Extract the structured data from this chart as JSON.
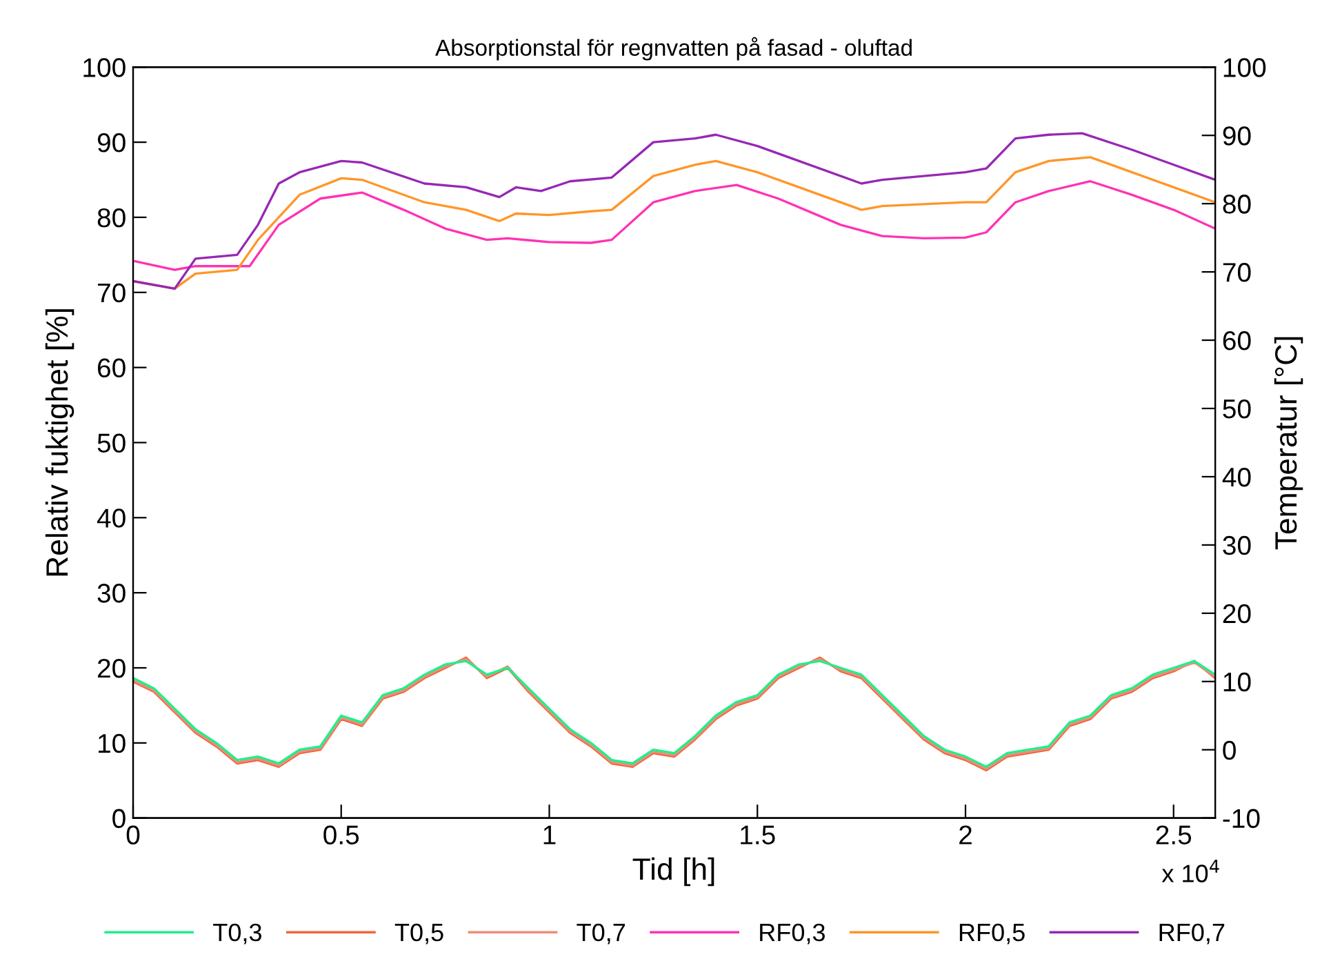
{
  "chart_data": {
    "type": "line",
    "title": "Absorptionstal för regnvatten på fasad - oluftad",
    "xlabel": "Tid [h]",
    "ylabel": "Relativ fuktighet [%]",
    "y2label": "Temperatur [°C]",
    "xlim": [
      0,
      2.6
    ],
    "xticks": [
      0,
      0.5,
      1,
      1.5,
      2,
      2.5
    ],
    "ylim": [
      0,
      100
    ],
    "yticks": [
      0,
      10,
      20,
      30,
      40,
      50,
      60,
      70,
      80,
      90,
      100
    ],
    "y2lim": [
      -10,
      100
    ],
    "y2ticks": [
      -10,
      0,
      10,
      20,
      30,
      40,
      50,
      60,
      70,
      80,
      90,
      100
    ],
    "annotations": [
      "x 10$^{4}$"
    ],
    "legend": "bottom",
    "grid": false,
    "marker": "none",
    "line_style": "solid",
    "series": [
      {
        "name": "T0,5",
        "color": "#f0643c",
        "axis": "y2",
        "x": [
          0,
          0.05,
          0.1,
          0.15,
          0.2,
          0.25,
          0.3,
          0.35,
          0.4,
          0.45,
          0.5,
          0.55,
          0.6,
          0.65,
          0.7,
          0.75,
          0.8,
          0.85,
          0.9,
          0.95,
          1,
          1.05,
          1.1,
          1.15,
          1.2,
          1.25,
          1.3,
          1.35,
          1.4,
          1.45,
          1.5,
          1.55,
          1.6,
          1.65,
          1.7,
          1.75,
          1.8,
          1.85,
          1.9,
          1.95,
          2,
          2.05,
          2.1,
          2.15,
          2.2,
          2.25,
          2.3,
          2.35,
          2.4,
          2.45,
          2.5,
          2.55,
          2.6
        ],
        "values": [
          10,
          8.5,
          5.5,
          2.5,
          0.5,
          -2,
          -1.5,
          -2.5,
          -0.5,
          0,
          4.5,
          3.5,
          7.5,
          8.5,
          10.5,
          12,
          13.5,
          10.5,
          12,
          8.5,
          5.5,
          2.5,
          0.5,
          -2,
          -2.5,
          -0.5,
          -1,
          1.5,
          4.5,
          6.5,
          7.5,
          10.5,
          12,
          13.5,
          11.5,
          10.5,
          7.5,
          4.5,
          1.5,
          -0.5,
          -1.5,
          -3,
          -1,
          -0.5,
          0,
          3.5,
          4.5,
          7.5,
          8.5,
          10.5,
          11.5,
          13,
          10.5
        ]
      },
      {
        "name": "T0,7",
        "color": "#f08c78",
        "axis": "y2",
        "x": [
          0,
          0.05,
          0.1,
          0.15,
          0.2,
          0.25,
          0.3,
          0.35,
          0.4,
          0.45,
          0.5,
          0.55,
          0.6,
          0.65,
          0.7,
          0.75,
          0.8,
          0.85,
          0.9,
          0.95,
          1,
          1.05,
          1.1,
          1.15,
          1.2,
          1.25,
          1.3,
          1.35,
          1.4,
          1.45,
          1.5,
          1.55,
          1.6,
          1.65,
          1.7,
          1.75,
          1.8,
          1.85,
          1.9,
          1.95,
          2,
          2.05,
          2.1,
          2.15,
          2.2,
          2.25,
          2.3,
          2.35,
          2.4,
          2.45,
          2.5,
          2.55,
          2.6
        ],
        "values": [
          10.2,
          8.7,
          5.7,
          2.7,
          0.7,
          -1.8,
          -1.3,
          -2.3,
          -0.3,
          0.2,
          4.7,
          3.7,
          7.7,
          8.7,
          10.7,
          12.2,
          13.3,
          10.7,
          12.2,
          8.7,
          5.7,
          2.7,
          0.7,
          -1.8,
          -2.3,
          -0.3,
          -0.8,
          1.7,
          4.7,
          6.7,
          7.7,
          10.7,
          12.2,
          13.3,
          11.7,
          10.7,
          7.7,
          4.7,
          1.7,
          -0.3,
          -1.3,
          -2.8,
          -0.8,
          -0.3,
          0.2,
          3.7,
          4.7,
          7.7,
          8.7,
          10.7,
          11.7,
          12.8,
          10.7
        ]
      },
      {
        "name": "T0,3",
        "color": "#1ef08c",
        "axis": "y2",
        "x": [
          0,
          0.05,
          0.1,
          0.15,
          0.2,
          0.25,
          0.3,
          0.35,
          0.4,
          0.45,
          0.5,
          0.55,
          0.6,
          0.65,
          0.7,
          0.75,
          0.8,
          0.85,
          0.9,
          0.95,
          1,
          1.05,
          1.1,
          1.15,
          1.2,
          1.25,
          1.3,
          1.35,
          1.4,
          1.45,
          1.5,
          1.55,
          1.6,
          1.65,
          1.7,
          1.75,
          1.8,
          1.85,
          1.9,
          1.95,
          2,
          2.05,
          2.1,
          2.15,
          2.2,
          2.25,
          2.3,
          2.35,
          2.4,
          2.45,
          2.5,
          2.55,
          2.6
        ],
        "values": [
          10.5,
          9,
          6,
          3,
          1,
          -1.5,
          -1,
          -2,
          0,
          0.5,
          5,
          4,
          8,
          9,
          11,
          12.5,
          13,
          11,
          12,
          9,
          6,
          3,
          1,
          -1.5,
          -2,
          0,
          -0.5,
          2,
          5,
          7,
          8,
          11,
          12.5,
          13,
          12,
          11,
          8,
          5,
          2,
          0,
          -1,
          -2.5,
          -0.5,
          0,
          0.5,
          4,
          5,
          8,
          9,
          11,
          12,
          13,
          11
        ]
      },
      {
        "name": "RF0,3",
        "color": "#ff32b4",
        "x": [
          0,
          0.1,
          0.15,
          0.28,
          0.35,
          0.45,
          0.55,
          0.65,
          0.75,
          0.85,
          0.9,
          1,
          1.1,
          1.15,
          1.25,
          1.35,
          1.45,
          1.55,
          1.7,
          1.8,
          1.9,
          2,
          2.05,
          2.12,
          2.2,
          2.3,
          2.4,
          2.5,
          2.6
        ],
        "values": [
          74.2,
          73,
          73.5,
          73.5,
          79,
          82.5,
          83.3,
          81,
          78.5,
          77,
          77.2,
          76.7,
          76.6,
          77,
          82,
          83.5,
          84.3,
          82.5,
          79,
          77.5,
          77.2,
          77.3,
          78,
          82,
          83.5,
          84.8,
          83,
          81,
          78.5
        ]
      },
      {
        "name": "RF0,5",
        "color": "#ff9628",
        "x": [
          0,
          0.1,
          0.15,
          0.25,
          0.3,
          0.4,
          0.5,
          0.55,
          0.7,
          0.8,
          0.88,
          0.92,
          1,
          1.1,
          1.15,
          1.25,
          1.35,
          1.4,
          1.5,
          1.6,
          1.75,
          1.8,
          2,
          2.05,
          2.12,
          2.2,
          2.3,
          2.4,
          2.5,
          2.6
        ],
        "values": [
          71.5,
          70.5,
          72.5,
          73,
          77,
          83,
          85.2,
          85,
          82,
          81,
          79.5,
          80.5,
          80.3,
          80.8,
          81,
          85.5,
          87,
          87.5,
          86,
          84,
          81,
          81.5,
          82,
          82,
          86,
          87.5,
          88,
          86,
          84,
          82
        ]
      },
      {
        "name": "RF0,7",
        "color": "#9628b4",
        "x": [
          0,
          0.1,
          0.15,
          0.25,
          0.3,
          0.35,
          0.4,
          0.5,
          0.55,
          0.7,
          0.8,
          0.88,
          0.92,
          0.98,
          1.05,
          1.15,
          1.25,
          1.35,
          1.4,
          1.5,
          1.6,
          1.75,
          1.8,
          1.9,
          2,
          2.05,
          2.12,
          2.2,
          2.28,
          2.4,
          2.5,
          2.6
        ],
        "values": [
          71.5,
          70.5,
          74.5,
          75,
          79,
          84.5,
          86,
          87.5,
          87.3,
          84.5,
          84,
          82.7,
          84,
          83.5,
          84.8,
          85.3,
          90,
          90.5,
          91,
          89.5,
          87.5,
          84.5,
          85,
          85.5,
          86,
          86.5,
          90.5,
          91,
          91.2,
          89,
          87,
          85
        ]
      }
    ]
  }
}
